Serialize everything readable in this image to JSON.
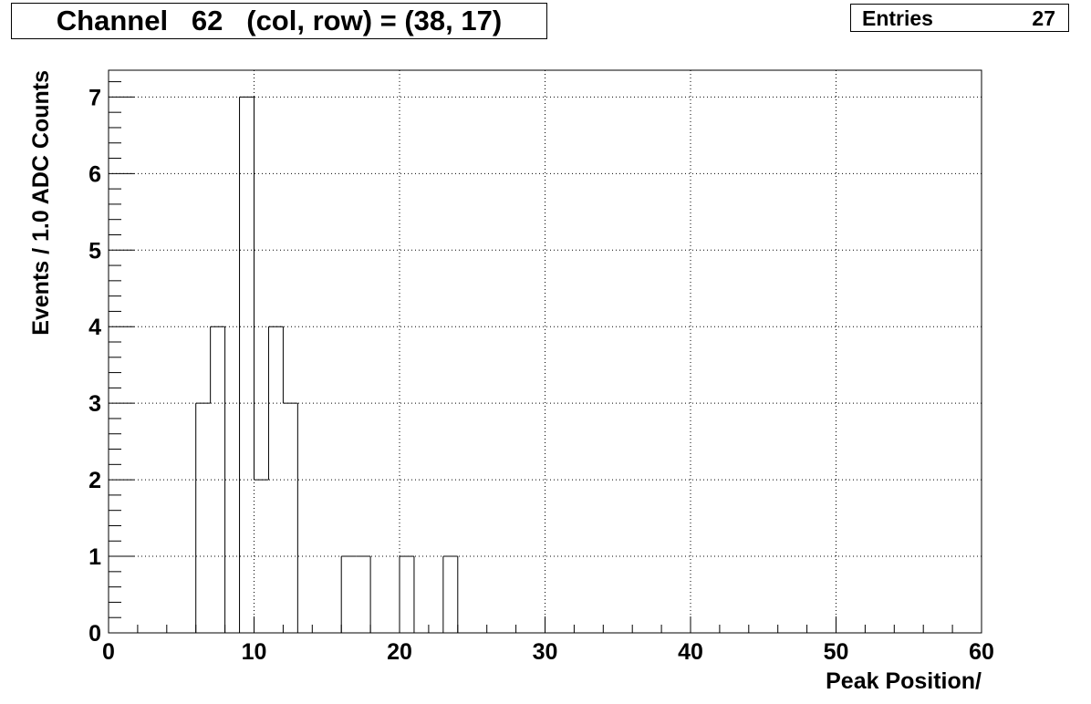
{
  "chart_data": {
    "type": "bar",
    "title": "Channel   62   (col, row) = (38, 17)",
    "xlabel": "Peak Position/",
    "ylabel": "Events / 1.0 ADC Counts",
    "xlim": [
      0,
      60
    ],
    "ylim": [
      0,
      7.35
    ],
    "x_ticks": [
      0,
      10,
      20,
      30,
      40,
      50,
      60
    ],
    "y_ticks": [
      0,
      1,
      2,
      3,
      4,
      5,
      6,
      7
    ],
    "grid": true,
    "bin_width": 1,
    "bins": [
      {
        "x": 6,
        "value": 3
      },
      {
        "x": 7,
        "value": 4
      },
      {
        "x": 8,
        "value": 0
      },
      {
        "x": 9,
        "value": 7
      },
      {
        "x": 10,
        "value": 2
      },
      {
        "x": 11,
        "value": 4
      },
      {
        "x": 12,
        "value": 3
      },
      {
        "x": 16,
        "value": 1
      },
      {
        "x": 17,
        "value": 1
      },
      {
        "x": 20,
        "value": 1
      },
      {
        "x": 23,
        "value": 1
      }
    ],
    "stats": {
      "label": "Entries",
      "value": "27"
    }
  }
}
